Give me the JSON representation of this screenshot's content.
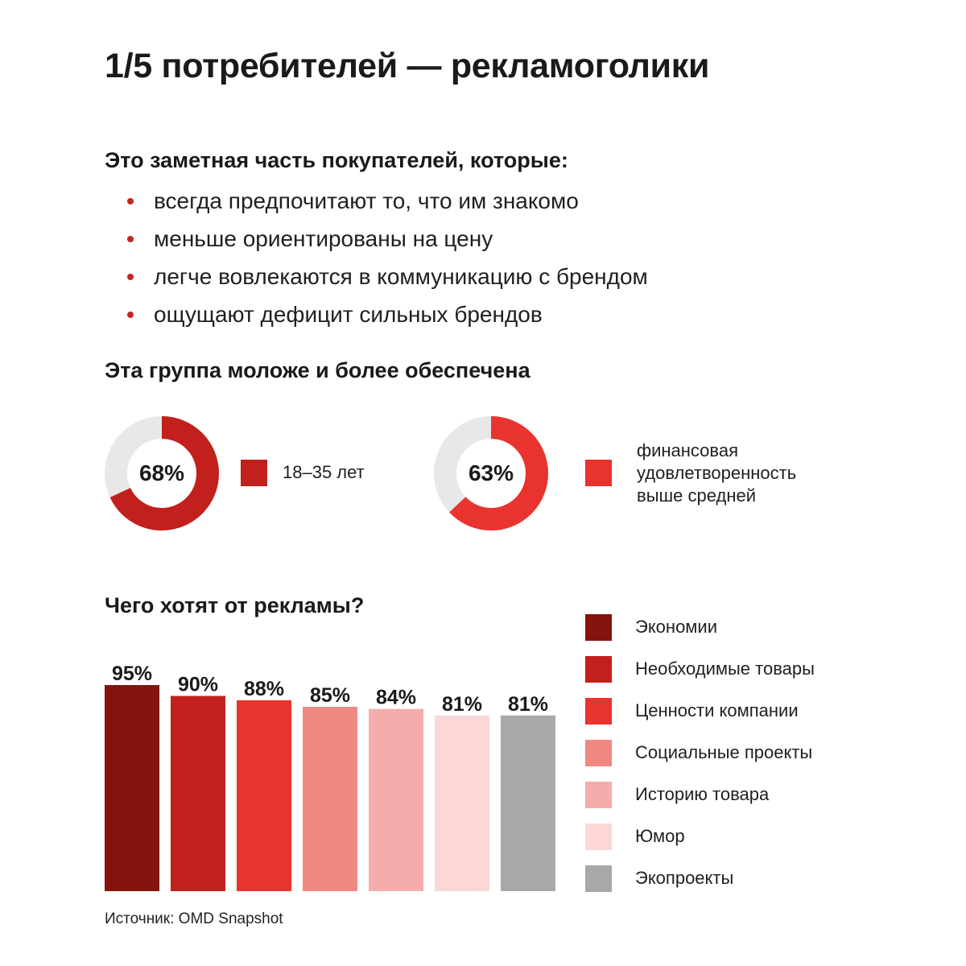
{
  "header": {
    "title": "1/5 потребителей — рекламоголики",
    "intro": "Это заметная часть покупателей, которые:",
    "bullets": [
      "всегда предпочитают то, что им знакомо",
      "меньше ориентированы на цену",
      "легче вовлекаются в коммуникацию с брендом",
      "ощущают дефицит сильных брендов"
    ]
  },
  "demographics": {
    "heading": "Эта группа моложе и более обеспечена",
    "track_color": "#e8e8e8",
    "items": [
      {
        "label": "68%",
        "value": 68,
        "caption": [
          "18–35 лет"
        ],
        "color": "#c1201c"
      },
      {
        "label": "63%",
        "value": 63,
        "caption": [
          "финансовая",
          "удовлетворенность",
          "выше средней"
        ],
        "color": "#e8332e"
      }
    ]
  },
  "chart_data": {
    "type": "bar",
    "title": "Чего хотят от рекламы?",
    "ylim": [
      0,
      100
    ],
    "legend_position": "right",
    "series": [
      {
        "name": "Экономии",
        "value": 95,
        "label": "95%",
        "color": "#83130c"
      },
      {
        "name": "Необходимые товары",
        "value": 90,
        "label": "90%",
        "color": "#c1201c"
      },
      {
        "name": "Ценности компании",
        "value": 88,
        "label": "88%",
        "color": "#e8332e"
      },
      {
        "name": "Социальные проекты",
        "value": 85,
        "label": "85%",
        "color": "#f08882"
      },
      {
        "name": "Историю товара",
        "value": 84,
        "label": "84%",
        "color": "#f5adab"
      },
      {
        "name": "Юмор",
        "value": 81,
        "label": "81%",
        "color": "#fbd8d7"
      },
      {
        "name": "Экопроекты",
        "value": 81,
        "label": "81%",
        "color": "#a8a8a8"
      }
    ]
  },
  "source": "Источник: OMD Snapshot"
}
